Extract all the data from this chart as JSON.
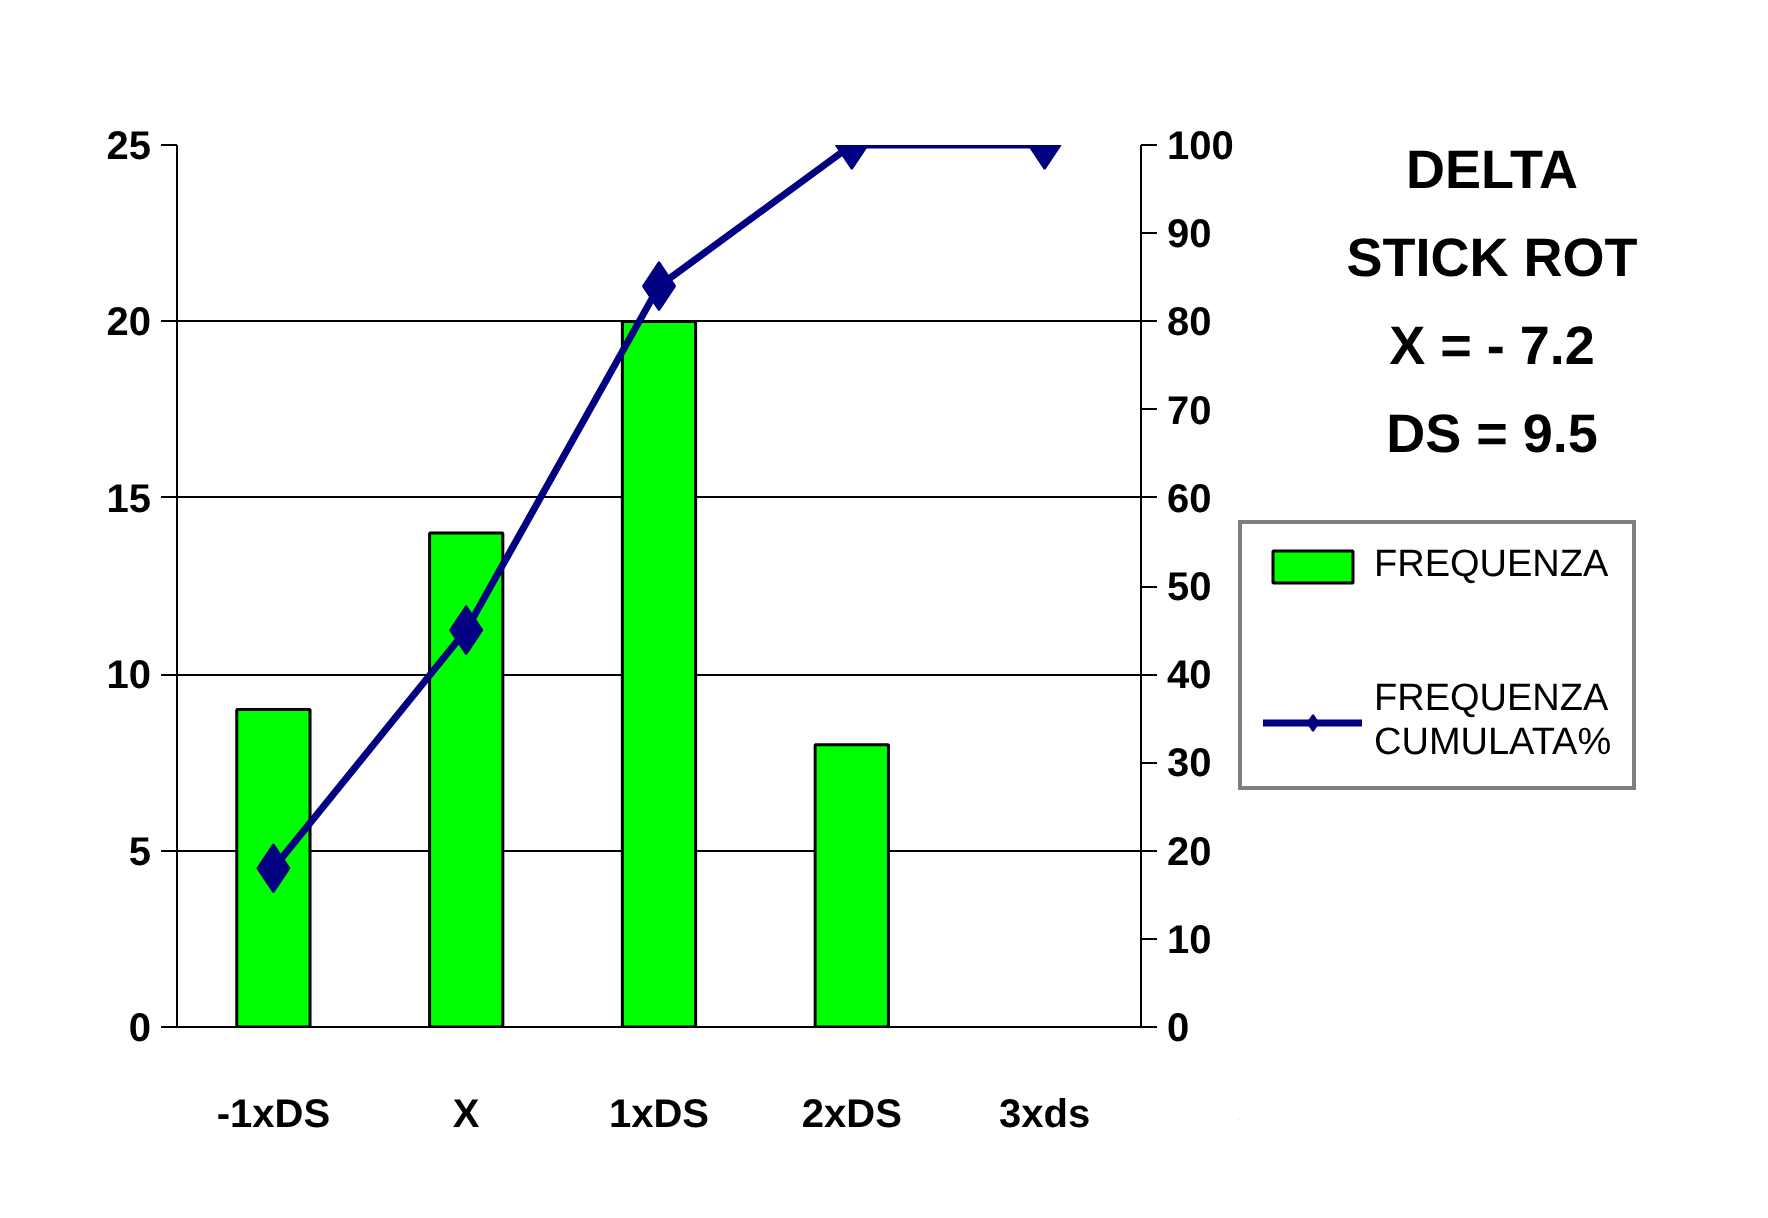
{
  "chart_data": {
    "type": "bar",
    "categories": [
      "-1xDS",
      "X",
      "1xDS",
      "2xDS",
      "3xds"
    ],
    "series": [
      {
        "name": "FREQUENZA",
        "color": "#00ff00",
        "values": [
          9,
          14,
          20,
          8,
          null
        ]
      },
      {
        "name": "FREQUENZA CUMULATA%",
        "type": "line",
        "axis": "y2",
        "color": "#000080",
        "marker": "diamond",
        "values": [
          18,
          45,
          84,
          100,
          100
        ]
      }
    ],
    "ylim": [
      0,
      25
    ],
    "yticks": [
      0,
      5,
      10,
      15,
      20,
      25
    ],
    "y2lim": [
      0,
      100
    ],
    "y2ticks": [
      0,
      10,
      20,
      30,
      40,
      50,
      60,
      70,
      80,
      90,
      100
    ],
    "grid": "y",
    "legend": "right",
    "annotations": [
      "DELTA",
      "STICK ROT",
      "X = - 7.2",
      "DS = 9.5"
    ]
  }
}
